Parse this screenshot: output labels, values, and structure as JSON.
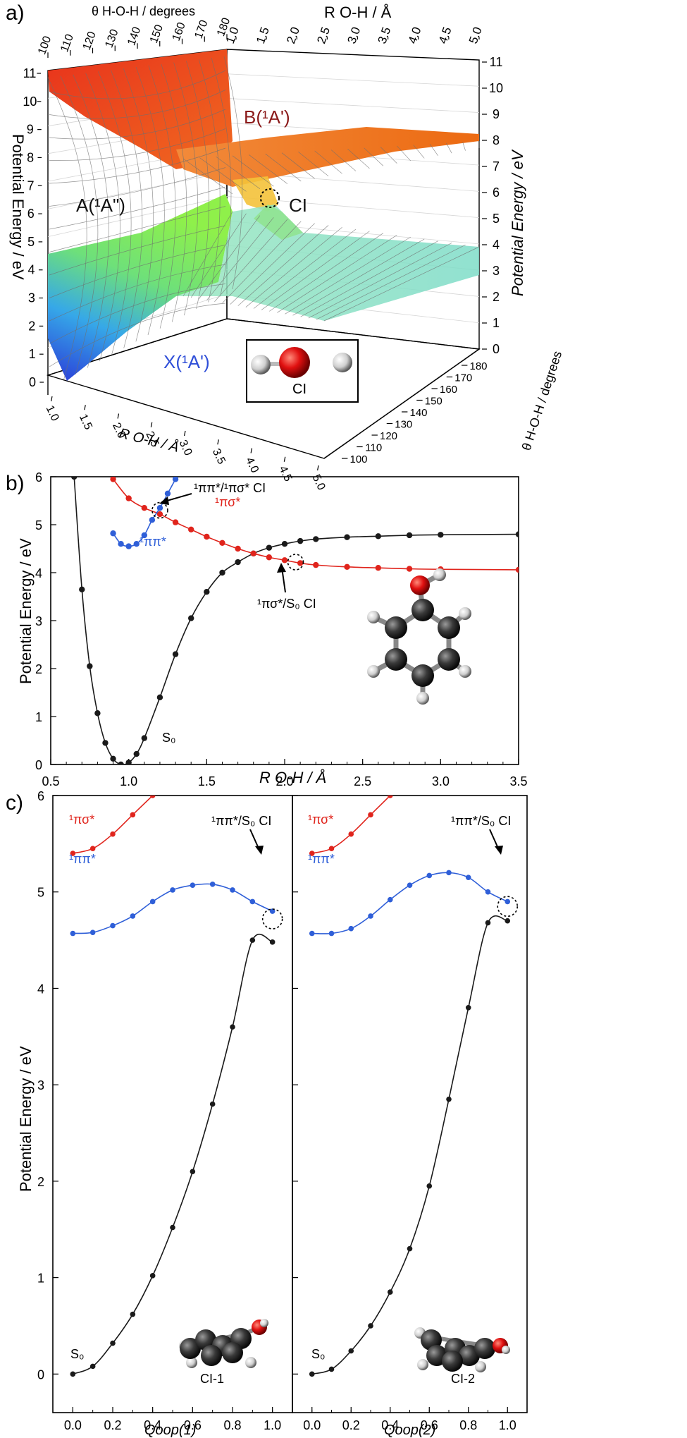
{
  "panel_labels": {
    "a": "a)",
    "b": "b)",
    "c": "c)"
  },
  "colors": {
    "axis": "#000000",
    "black": "#1a1a1a",
    "red": "#e0241c",
    "blue": "#2f5fd8",
    "surface_orange": "#f07a22",
    "surface_red": "#e8321c",
    "surface_green": "#6ee86a",
    "surface_teal": "#8fe8d0",
    "surface_blue": "#2a4fe0",
    "mesh": "#8a8a8a",
    "atom_red": "#e01010",
    "atom_white": "#d8d8d8",
    "atom_dark": "#3a3a3a"
  },
  "panel_a": {
    "top_left_axis_label": "θ H-O-H / degrees",
    "top_left_ticks": [
      "100",
      "110",
      "120",
      "130",
      "140",
      "150",
      "160",
      "170",
      "180"
    ],
    "top_right_axis_label": "R O-H / Å",
    "top_right_ticks": [
      "1.0",
      "1.5",
      "2.0",
      "2.5",
      "3.0",
      "3.5",
      "4.0",
      "4.5",
      "5.0"
    ],
    "left_axis_label": "Potential Energy / eV",
    "left_ticks": [
      "0",
      "1",
      "2",
      "3",
      "4",
      "5",
      "6",
      "7",
      "8",
      "9",
      "10",
      "11"
    ],
    "right_axis_label": "Potential Energy / eV",
    "right_ticks": [
      "0",
      "1",
      "2",
      "3",
      "4",
      "5",
      "6",
      "7",
      "8",
      "9",
      "10",
      "11"
    ],
    "bottom_left_axis_label": "R O-H / Å",
    "bottom_left_ticks": [
      "1.0",
      "1.5",
      "2.0",
      "2.5",
      "3.0",
      "3.5",
      "4.0",
      "4.5",
      "5.0"
    ],
    "bottom_right_axis_label": "θ H-O-H / degrees",
    "bottom_right_ticks": [
      "100",
      "110",
      "120",
      "130",
      "140",
      "150",
      "160",
      "170",
      "180"
    ],
    "state_labels": {
      "B": "B(¹A')",
      "A": "A(¹A\")",
      "X": "X(¹A')",
      "CI": "CI"
    },
    "inset_label": "CI"
  },
  "chart_data": [
    {
      "type": "line",
      "panel": "b",
      "xlabel": "R O-H / Å",
      "ylabel": "Potential Energy / eV",
      "xlim": [
        0.5,
        3.5
      ],
      "ylim": [
        0,
        6
      ],
      "xticks": [
        "0.5",
        "1.0",
        "1.5",
        "2.0",
        "2.5",
        "3.0",
        "3.5"
      ],
      "yticks": [
        "0",
        "1",
        "2",
        "3",
        "4",
        "5",
        "6"
      ],
      "series": [
        {
          "name": "S0",
          "label": "S₀",
          "color": "black",
          "x": [
            0.65,
            0.7,
            0.75,
            0.8,
            0.85,
            0.9,
            0.95,
            1.0,
            1.05,
            1.1,
            1.2,
            1.3,
            1.4,
            1.5,
            1.6,
            1.7,
            1.8,
            1.9,
            2.0,
            2.1,
            2.2,
            2.4,
            2.6,
            2.8,
            3.0,
            3.5
          ],
          "y": [
            6.0,
            3.65,
            2.05,
            1.07,
            0.45,
            0.12,
            0.0,
            0.04,
            0.22,
            0.55,
            1.4,
            2.3,
            3.05,
            3.6,
            4.0,
            4.22,
            4.4,
            4.52,
            4.6,
            4.66,
            4.7,
            4.74,
            4.76,
            4.78,
            4.79,
            4.8
          ]
        },
        {
          "name": "pi-sigma",
          "label": "¹πσ*",
          "color": "red",
          "x": [
            0.9,
            1.0,
            1.1,
            1.2,
            1.3,
            1.4,
            1.5,
            1.6,
            1.7,
            1.8,
            1.9,
            2.0,
            2.1,
            2.2,
            2.4,
            2.6,
            2.8,
            3.0,
            3.5
          ],
          "y": [
            5.95,
            5.55,
            5.35,
            5.22,
            5.05,
            4.9,
            4.75,
            4.62,
            4.5,
            4.4,
            4.32,
            4.26,
            4.2,
            4.16,
            4.12,
            4.1,
            4.08,
            4.07,
            4.06
          ]
        },
        {
          "name": "pi-pi",
          "label": "¹ππ*",
          "color": "blue",
          "x": [
            0.9,
            0.95,
            1.0,
            1.05,
            1.1,
            1.15,
            1.2,
            1.25,
            1.3
          ],
          "y": [
            4.82,
            4.6,
            4.55,
            4.6,
            4.78,
            5.1,
            5.35,
            5.65,
            5.95
          ]
        }
      ],
      "annotations": {
        "ci_upper": "¹ππ*/¹πσ* CI",
        "ci_lower": "¹πσ*/S₀ CI"
      }
    },
    {
      "type": "line",
      "panel": "c-left",
      "xlabel": "Qoop(1)",
      "ylabel": "Potential Energy / eV",
      "xlim": [
        -0.1,
        1.1
      ],
      "ylim": [
        -0.4,
        6
      ],
      "xticks": [
        "0.0",
        "0.2",
        "0.4",
        "0.6",
        "0.8",
        "1.0"
      ],
      "yticks": [
        "0",
        "1",
        "2",
        "3",
        "4",
        "5",
        "6"
      ],
      "series": [
        {
          "name": "S0",
          "label": "S₀",
          "color": "black",
          "x": [
            0.0,
            0.1,
            0.2,
            0.3,
            0.4,
            0.5,
            0.6,
            0.7,
            0.8,
            0.9,
            1.0
          ],
          "y": [
            0.0,
            0.08,
            0.32,
            0.62,
            1.02,
            1.52,
            2.1,
            2.8,
            3.6,
            4.5,
            4.48
          ]
        },
        {
          "name": "pi-sigma",
          "label": "¹πσ*",
          "color": "red",
          "x": [
            0.0,
            0.1,
            0.2,
            0.3,
            0.4
          ],
          "y": [
            5.4,
            5.45,
            5.6,
            5.8,
            6.0
          ]
        },
        {
          "name": "pi-pi",
          "label": "¹ππ*",
          "color": "blue",
          "x": [
            0.0,
            0.1,
            0.2,
            0.3,
            0.4,
            0.5,
            0.6,
            0.7,
            0.8,
            0.9,
            1.0
          ],
          "y": [
            4.57,
            4.58,
            4.65,
            4.75,
            4.9,
            5.02,
            5.07,
            5.08,
            5.02,
            4.9,
            4.8
          ]
        }
      ],
      "annotations": {
        "ci": "¹ππ*/S₀ CI",
        "inset": "CI-1"
      }
    },
    {
      "type": "line",
      "panel": "c-right",
      "xlabel": "Qoop(2)",
      "ylabel": "",
      "xlim": [
        -0.1,
        1.1
      ],
      "ylim": [
        -0.4,
        6
      ],
      "xticks": [
        "0.0",
        "0.2",
        "0.4",
        "0.6",
        "0.8",
        "1.0"
      ],
      "yticks": [],
      "series": [
        {
          "name": "S0",
          "label": "S₀",
          "color": "black",
          "x": [
            0.0,
            0.1,
            0.2,
            0.3,
            0.4,
            0.5,
            0.6,
            0.7,
            0.8,
            0.9,
            1.0
          ],
          "y": [
            0.0,
            0.05,
            0.24,
            0.5,
            0.85,
            1.3,
            1.95,
            2.85,
            3.8,
            4.68,
            4.7
          ]
        },
        {
          "name": "pi-sigma",
          "label": "¹πσ*",
          "color": "red",
          "x": [
            0.0,
            0.1,
            0.2,
            0.3,
            0.4
          ],
          "y": [
            5.4,
            5.45,
            5.6,
            5.8,
            6.0
          ]
        },
        {
          "name": "pi-pi",
          "label": "¹ππ*",
          "color": "blue",
          "x": [
            0.0,
            0.1,
            0.2,
            0.3,
            0.4,
            0.5,
            0.6,
            0.7,
            0.8,
            0.9,
            1.0
          ],
          "y": [
            4.57,
            4.57,
            4.62,
            4.75,
            4.92,
            5.07,
            5.17,
            5.2,
            5.15,
            5.0,
            4.9
          ]
        }
      ],
      "annotations": {
        "ci": "¹ππ*/S₀ CI",
        "inset": "CI-2"
      }
    }
  ]
}
